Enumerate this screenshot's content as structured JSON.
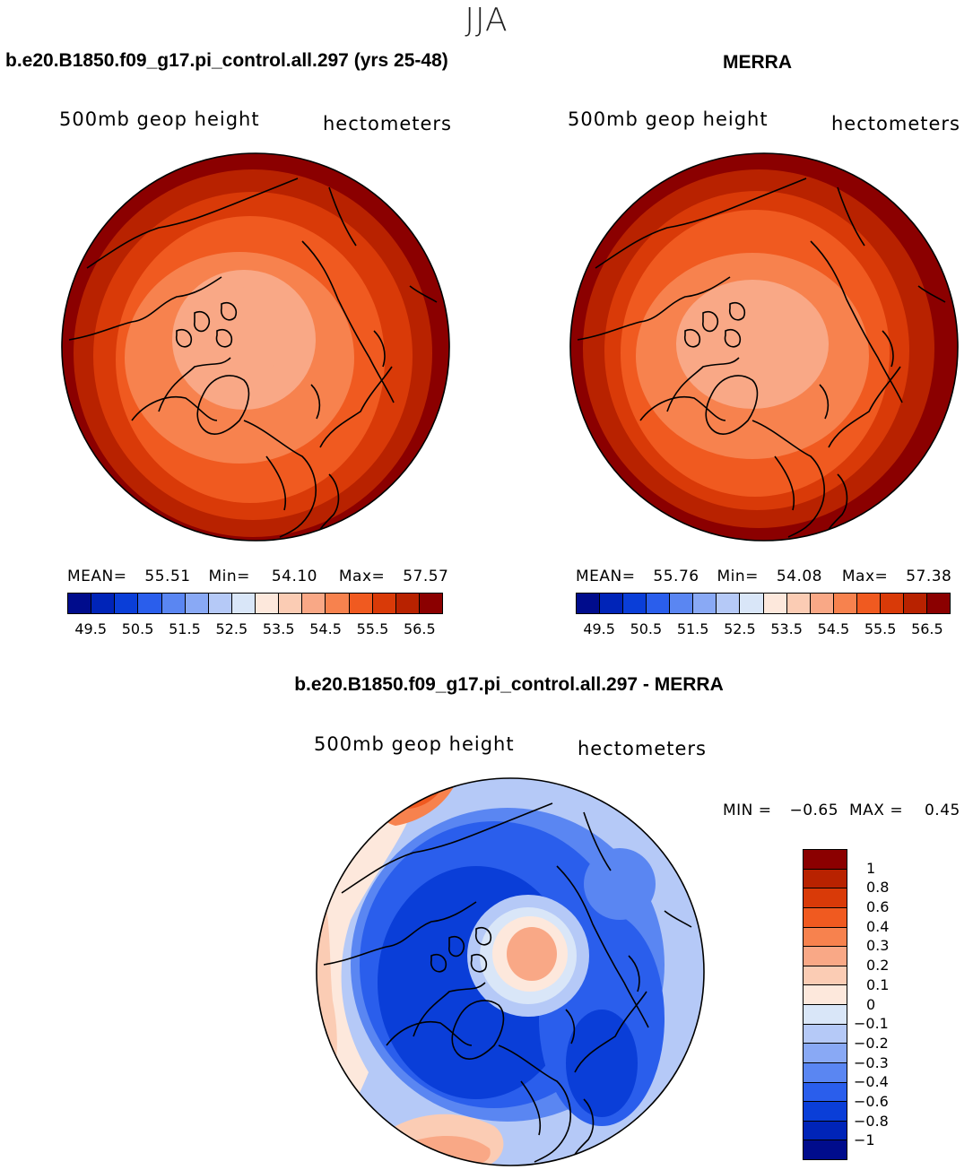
{
  "figure": {
    "season": "JJA"
  },
  "panels": {
    "model": {
      "title": "b.e20.B1850.f09_g17.pi_control.all.297 (yrs 25-48)",
      "variable": "500mb geop height",
      "units": "hectometers",
      "stats": {
        "mean_label": "MEAN=",
        "mean": "55.51",
        "min_label": "Min=",
        "min": "54.10",
        "max_label": "Max=",
        "max": "57.57"
      }
    },
    "obs": {
      "title": "MERRA",
      "variable": "500mb geop height",
      "units": "hectometers",
      "stats": {
        "mean_label": "MEAN=",
        "mean": "55.76",
        "min_label": "Min=",
        "min": "54.08",
        "max_label": "Max=",
        "max": "57.38"
      }
    },
    "diff": {
      "title": "b.e20.B1850.f09_g17.pi_control.all.297 - MERRA",
      "variable": "500mb geop height",
      "units": "hectometers",
      "stats": {
        "min_label": "MIN =",
        "min": "−0.65",
        "max_label": "MAX =",
        "max": "0.45"
      }
    }
  },
  "chart_data": [
    {
      "type": "heatmap",
      "name": "model",
      "projection": "north polar stereographic",
      "title": "b.e20.B1850.f09_g17.pi_control.all.297 (yrs 25-48)",
      "field": "500mb geop height",
      "units": "hectometers",
      "mean": 55.51,
      "min": 54.1,
      "max": 57.57,
      "contour_levels": [
        49.5,
        50.0,
        50.5,
        51.0,
        51.5,
        52.0,
        52.5,
        53.0,
        53.5,
        54.0,
        54.5,
        55.0,
        55.5,
        56.0,
        56.5
      ],
      "tick_labels": [
        "49.5",
        "50.5",
        "51.5",
        "52.5",
        "53.5",
        "54.5",
        "55.5",
        "56.5"
      ]
    },
    {
      "type": "heatmap",
      "name": "obs",
      "projection": "north polar stereographic",
      "title": "MERRA",
      "field": "500mb geop height",
      "units": "hectometers",
      "mean": 55.76,
      "min": 54.08,
      "max": 57.38,
      "contour_levels": [
        49.5,
        50.0,
        50.5,
        51.0,
        51.5,
        52.0,
        52.5,
        53.0,
        53.5,
        54.0,
        54.5,
        55.0,
        55.5,
        56.0,
        56.5
      ],
      "tick_labels": [
        "49.5",
        "50.5",
        "51.5",
        "52.5",
        "53.5",
        "54.5",
        "55.5",
        "56.5"
      ]
    },
    {
      "type": "heatmap",
      "name": "difference",
      "projection": "north polar stereographic",
      "title": "b.e20.B1850.f09_g17.pi_control.all.297 - MERRA",
      "field": "500mb geop height",
      "units": "hectometers",
      "min": -0.65,
      "max": 0.45,
      "contour_levels": [
        1,
        0.8,
        0.6,
        0.4,
        0.3,
        0.2,
        0.1,
        0,
        -0.1,
        -0.2,
        -0.3,
        -0.4,
        -0.6,
        -0.8,
        -1
      ],
      "tick_labels": [
        "1",
        "0.8",
        "0.6",
        "0.4",
        "0.3",
        "0.2",
        "0.1",
        "0",
        "−0.1",
        "−0.2",
        "−0.3",
        "−0.4",
        "−0.6",
        "−0.8",
        "−1"
      ]
    }
  ],
  "colors": {
    "seq": [
      "#000c8c",
      "#0024b8",
      "#0a3ed8",
      "#2a5eec",
      "#5a86f2",
      "#89a9f5",
      "#b5c9f7",
      "#d9e6f8",
      "#fde8dc",
      "#fbccb4",
      "#f9a886",
      "#f7824e",
      "#f05a20",
      "#d93a08",
      "#b82200",
      "#8b0000"
    ],
    "div": [
      "#8b0000",
      "#b82200",
      "#d93a08",
      "#f05a20",
      "#f7824e",
      "#f9a886",
      "#fbccb4",
      "#fde8dc",
      "#d9e6f8",
      "#b5c9f7",
      "#89a9f5",
      "#5a86f2",
      "#2a5eec",
      "#0a3ed8",
      "#0024b8",
      "#000c8c"
    ]
  }
}
